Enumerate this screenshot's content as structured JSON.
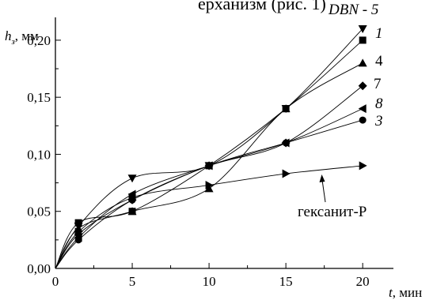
{
  "caption_fragment": "ерханизм (рис. 1)",
  "chart_data": {
    "type": "scatter",
    "ylabel": "h",
    "ylabel_sub": "з",
    "ylabel_unit": ", мм",
    "xlabel": "t",
    "xlabel_unit": ", мин",
    "xlim": [
      0,
      22
    ],
    "ylim": [
      0,
      0.22
    ],
    "xticks": [
      0,
      5,
      10,
      15,
      20
    ],
    "yticks": [
      "0,00",
      "0,05",
      "0,10",
      "0,15",
      "0,20"
    ],
    "ytick_values": [
      0,
      0.05,
      0.1,
      0.15,
      0.2
    ],
    "series": [
      {
        "name": "DBN - 5",
        "marker": "triangle-down",
        "x": [
          0,
          1.5,
          5,
          10,
          15,
          20
        ],
        "y": [
          0,
          0.037,
          0.079,
          0.09,
          0.14,
          0.21
        ]
      },
      {
        "name": "1",
        "marker": "square",
        "x": [
          0,
          1.5,
          5,
          10,
          15,
          20
        ],
        "y": [
          0,
          0.04,
          0.05,
          0.09,
          0.14,
          0.2
        ]
      },
      {
        "name": "4",
        "marker": "triangle-up",
        "x": [
          0,
          1.5,
          5,
          10,
          15,
          20
        ],
        "y": [
          0,
          0.035,
          0.05,
          0.07,
          0.14,
          0.18
        ]
      },
      {
        "name": "7",
        "marker": "diamond",
        "x": [
          0,
          1.5,
          5,
          10,
          15,
          20
        ],
        "y": [
          0,
          0.03,
          0.06,
          0.09,
          0.11,
          0.16
        ]
      },
      {
        "name": "8",
        "marker": "triangle-left",
        "x": [
          0,
          1.5,
          5,
          10,
          15,
          20
        ],
        "y": [
          0,
          0.027,
          0.065,
          0.09,
          0.11,
          0.14
        ]
      },
      {
        "name": "3",
        "marker": "circle",
        "x": [
          0,
          1.5,
          5,
          10,
          15,
          20
        ],
        "y": [
          0,
          0.025,
          0.06,
          0.09,
          0.11,
          0.13
        ]
      },
      {
        "name": "гексанит-Р",
        "marker": "triangle-right",
        "x": [
          0,
          1.5,
          5,
          10,
          15,
          20
        ],
        "y": [
          0,
          0.032,
          0.062,
          0.073,
          0.083,
          0.09
        ]
      }
    ],
    "annotation": "гексанит-Р",
    "grid": false
  }
}
